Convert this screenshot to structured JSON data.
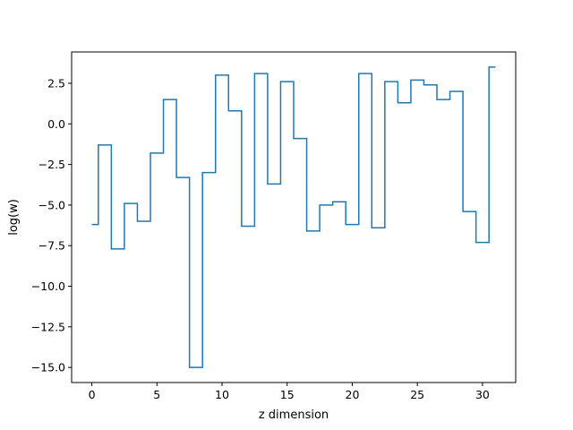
{
  "chart_data": {
    "type": "line",
    "drawstyle": "steps-mid",
    "title": "",
    "xlabel": "z dimension",
    "ylabel": "log(w)",
    "x": [
      0,
      1,
      2,
      3,
      4,
      5,
      6,
      7,
      8,
      9,
      10,
      11,
      12,
      13,
      14,
      15,
      16,
      17,
      18,
      19,
      20,
      21,
      22,
      23,
      24,
      25,
      26,
      27,
      28,
      29,
      30,
      31
    ],
    "series": [
      {
        "color": "#1f77b4",
        "values": [
          -6.2,
          -1.3,
          -7.7,
          -4.9,
          -6.0,
          -1.8,
          1.5,
          -3.3,
          -15.0,
          -3.0,
          3.0,
          0.8,
          -6.3,
          3.1,
          -3.7,
          2.6,
          -0.9,
          -6.6,
          -5.0,
          -4.8,
          -6.2,
          3.1,
          -6.4,
          2.6,
          1.3,
          2.7,
          2.4,
          1.5,
          2.0,
          -5.4,
          -7.3,
          3.5
        ]
      }
    ],
    "xlim": [
      -1.55,
      32.55
    ],
    "ylim": [
      -15.93,
      4.43
    ],
    "xticks": [
      0,
      5,
      10,
      15,
      20,
      25,
      30
    ],
    "xtick_labels": [
      "0",
      "5",
      "10",
      "15",
      "20",
      "25",
      "30"
    ],
    "yticks": [
      2.5,
      0.0,
      -2.5,
      -5.0,
      -7.5,
      -10.0,
      -12.5,
      -15.0
    ],
    "ytick_labels": [
      "2.5",
      "0.0",
      "−2.5",
      "−5.0",
      "−7.5",
      "−10.0",
      "−12.5",
      "−15.0"
    ],
    "grid": false,
    "legend": false
  }
}
